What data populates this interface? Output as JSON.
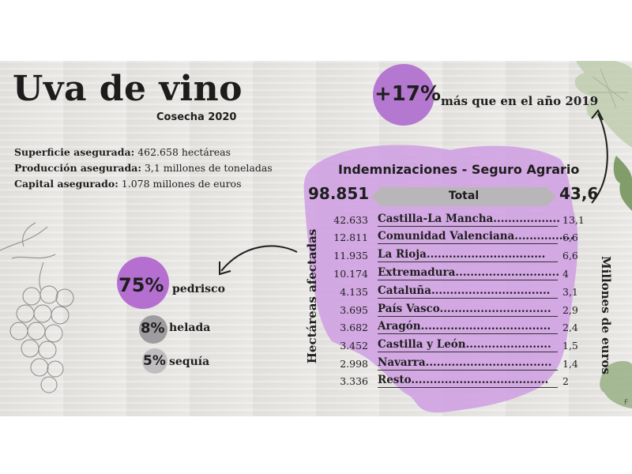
{
  "title": "Uva de vino",
  "subtitle": "Cosecha 2020",
  "stats": [
    {
      "label": "Superficie asegurada:",
      "value": "462.658 hectáreas"
    },
    {
      "label": "Producción asegurada:",
      "value": "3,1 millones de toneladas"
    },
    {
      "label": "Capital asegurado:",
      "value": "1.078 millones de euros"
    }
  ],
  "growth": {
    "pct": "+17%",
    "text": "más que en el año 2019"
  },
  "indemnizaciones": {
    "title": "Indemnizaciones - Seguro Agrario",
    "total_label": "Total",
    "total_ha": "98.851",
    "total_eur": "43,6",
    "ha_axis": "Hectáreas afectadas",
    "eur_axis": "Millones de euros",
    "rows": [
      {
        "ha": "42.633",
        "region": "Castilla-La Mancha",
        "eur": "13,1"
      },
      {
        "ha": "12.811",
        "region": "Comunidad Valenciana",
        "eur": "6,6"
      },
      {
        "ha": "11.935",
        "region": "La Rioja",
        "eur": "6,6"
      },
      {
        "ha": "10.174",
        "region": "Extremadura",
        "eur": "4"
      },
      {
        "ha": "4.135",
        "region": "Cataluña",
        "eur": "3,1"
      },
      {
        "ha": "3.695",
        "region": "País Vasco",
        "eur": "2,9"
      },
      {
        "ha": "3.682",
        "region": "Aragón",
        "eur": "2,4"
      },
      {
        "ha": "3.452",
        "region": "Castilla y León",
        "eur": "1,5"
      },
      {
        "ha": "2.998",
        "region": "Navarra",
        "eur": "1,4"
      },
      {
        "ha": "3.336",
        "region": "Resto",
        "eur": "2"
      }
    ]
  },
  "causes": [
    {
      "pct": "75%",
      "label": "pedrisco"
    },
    {
      "pct": "8%",
      "label": "helada"
    },
    {
      "pct": "5%",
      "label": "sequía"
    }
  ],
  "corner_mark": "F",
  "colors": {
    "accent_purple": "#b46fd1",
    "blob_purple": "#cf9ee3",
    "grey_circle": "#9f9c9f",
    "light_grey_circle": "#c0bec0",
    "background": "#e7e5e2"
  },
  "icons": [
    "grapes-illustration",
    "vine-leaves",
    "curved-arrow-left",
    "curved-arrow-up"
  ]
}
